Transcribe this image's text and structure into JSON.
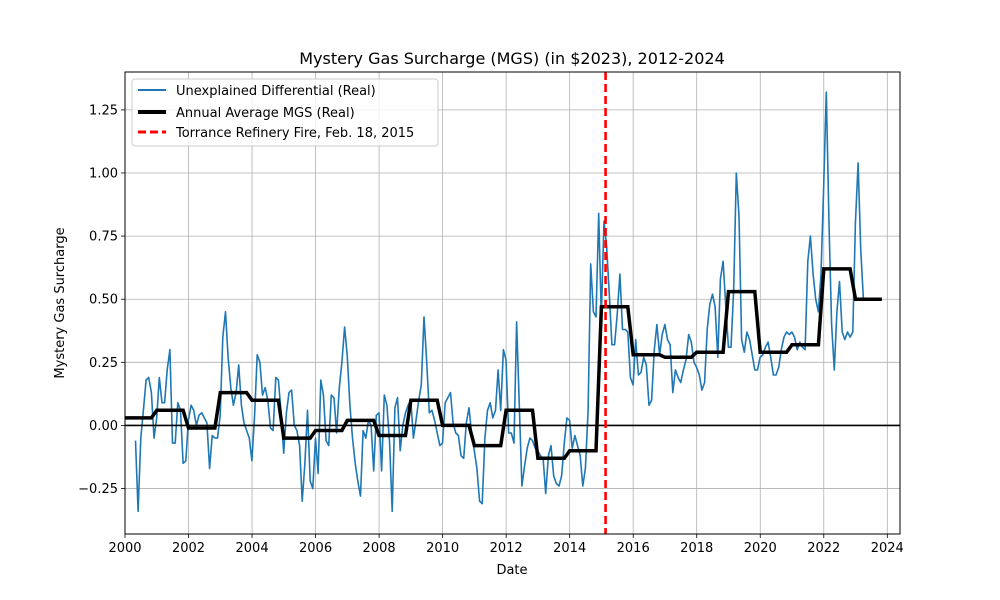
{
  "chart_data": {
    "type": "line",
    "title": "Mystery Gas Surcharge (MGS) (in $2023), 2012-2024",
    "xlabel": "Date",
    "ylabel": "Mystery Gas Surcharge",
    "xlim": [
      2000.0,
      2024.4
    ],
    "ylim": [
      -0.43,
      1.4
    ],
    "grid": true,
    "legend_position": "top-left",
    "x_ticks": [
      2000,
      2002,
      2004,
      2006,
      2008,
      2010,
      2012,
      2014,
      2016,
      2018,
      2020,
      2022,
      2024
    ],
    "x_tick_labels": [
      "2000",
      "2002",
      "2004",
      "2006",
      "2008",
      "2010",
      "2012",
      "2014",
      "2016",
      "2018",
      "2020",
      "2022",
      "2024"
    ],
    "y_ticks": [
      -0.25,
      0.0,
      0.25,
      0.5,
      0.75,
      1.0,
      1.25
    ],
    "y_tick_labels": [
      "−0.25",
      "0.00",
      "0.25",
      "0.50",
      "0.75",
      "1.00",
      "1.25"
    ],
    "colors": {
      "monthly": "#1f77b4",
      "annual": "#000000",
      "event": "#ff0000",
      "zero": "#000000"
    },
    "zero_line": 0,
    "series": [
      {
        "name": "Unexplained Differential (Real)",
        "style": "line",
        "start_year": 2000.33,
        "step": 0.0833333,
        "values": [
          -0.06,
          -0.34,
          -0.05,
          0.06,
          0.18,
          0.19,
          0.13,
          -0.05,
          0.03,
          0.19,
          0.09,
          0.09,
          0.22,
          0.3,
          -0.07,
          -0.07,
          0.09,
          0.06,
          -0.15,
          -0.14,
          0.02,
          0.08,
          0.06,
          0.0,
          0.04,
          0.05,
          0.03,
          0.01,
          -0.17,
          -0.04,
          -0.05,
          -0.05,
          0.04,
          0.35,
          0.45,
          0.27,
          0.15,
          0.08,
          0.13,
          0.24,
          0.08,
          0.01,
          -0.02,
          -0.05,
          -0.14,
          0.04,
          0.28,
          0.25,
          0.12,
          0.15,
          0.1,
          -0.01,
          -0.02,
          0.19,
          0.18,
          0.05,
          -0.11,
          0.05,
          0.13,
          0.14,
          0.0,
          -0.02,
          -0.08,
          -0.3,
          -0.15,
          0.06,
          -0.22,
          -0.25,
          -0.05,
          -0.19,
          0.18,
          0.12,
          -0.06,
          -0.08,
          0.12,
          0.11,
          -0.03,
          0.15,
          0.25,
          0.39,
          0.28,
          0.08,
          -0.05,
          -0.15,
          -0.22,
          -0.28,
          -0.02,
          -0.05,
          0.02,
          0.0,
          -0.18,
          0.04,
          0.05,
          -0.18,
          0.12,
          0.08,
          -0.07,
          -0.34,
          0.07,
          0.11,
          -0.1,
          0.0,
          0.05,
          0.08,
          0.1,
          -0.05,
          0.02,
          0.1,
          0.16,
          0.43,
          0.26,
          0.05,
          0.06,
          0.02,
          -0.03,
          -0.08,
          -0.07,
          0.09,
          0.11,
          0.13,
          0.01,
          -0.03,
          -0.04,
          -0.12,
          -0.13,
          0.01,
          0.07,
          -0.03,
          -0.1,
          -0.17,
          -0.3,
          -0.31,
          -0.05,
          0.06,
          0.09,
          0.03,
          0.06,
          0.22,
          0.06,
          0.3,
          0.26,
          -0.03,
          -0.03,
          -0.07,
          0.41,
          0.08,
          -0.24,
          -0.16,
          -0.09,
          -0.05,
          -0.06,
          -0.09,
          -0.1,
          -0.12,
          -0.13,
          -0.27,
          -0.12,
          -0.08,
          -0.2,
          -0.23,
          -0.24,
          -0.2,
          -0.07,
          0.03,
          0.02,
          -0.09,
          -0.04,
          -0.08,
          -0.12,
          -0.24,
          -0.17,
          0.06,
          0.64,
          0.45,
          0.43,
          0.84,
          0.43,
          0.81,
          0.71,
          0.52,
          0.32,
          0.32,
          0.44,
          0.6,
          0.38,
          0.38,
          0.37,
          0.19,
          0.16,
          0.34,
          0.2,
          0.21,
          0.27,
          0.24,
          0.08,
          0.1,
          0.3,
          0.4,
          0.28,
          0.36,
          0.4,
          0.34,
          0.32,
          0.13,
          0.22,
          0.19,
          0.17,
          0.22,
          0.26,
          0.36,
          0.33,
          0.25,
          0.23,
          0.2,
          0.14,
          0.17,
          0.38,
          0.48,
          0.52,
          0.47,
          0.27,
          0.58,
          0.65,
          0.48,
          0.31,
          0.31,
          0.54,
          1.0,
          0.83,
          0.34,
          0.29,
          0.37,
          0.34,
          0.28,
          0.22,
          0.22,
          0.27,
          0.28,
          0.31,
          0.33,
          0.27,
          0.2,
          0.2,
          0.23,
          0.3,
          0.35,
          0.37,
          0.36,
          0.37,
          0.35,
          0.3,
          0.33,
          0.31,
          0.3,
          0.65,
          0.75,
          0.6,
          0.5,
          0.45,
          0.6,
          0.95,
          1.32,
          0.8,
          0.4,
          0.22,
          0.45,
          0.57,
          0.37,
          0.34,
          0.37,
          0.35,
          0.37,
          0.8,
          1.04,
          0.7,
          0.5
        ]
      },
      {
        "name": "Annual Average MGS (Real)",
        "style": "step",
        "years": [
          2000,
          2001,
          2002,
          2003,
          2004,
          2005,
          2006,
          2007,
          2008,
          2009,
          2010,
          2011,
          2012,
          2013,
          2014,
          2015,
          2016,
          2017,
          2018,
          2019,
          2020,
          2021,
          2022,
          2023
        ],
        "values": [
          0.03,
          0.06,
          -0.01,
          0.13,
          0.1,
          -0.05,
          -0.02,
          0.02,
          -0.04,
          0.1,
          0.0,
          -0.08,
          0.06,
          -0.13,
          -0.1,
          0.47,
          0.28,
          0.27,
          0.29,
          0.53,
          0.29,
          0.32,
          0.62,
          0.5
        ]
      },
      {
        "name": "Torrance Refinery Fire, Feb. 18, 2015",
        "style": "vline",
        "x": 2015.13
      }
    ]
  }
}
